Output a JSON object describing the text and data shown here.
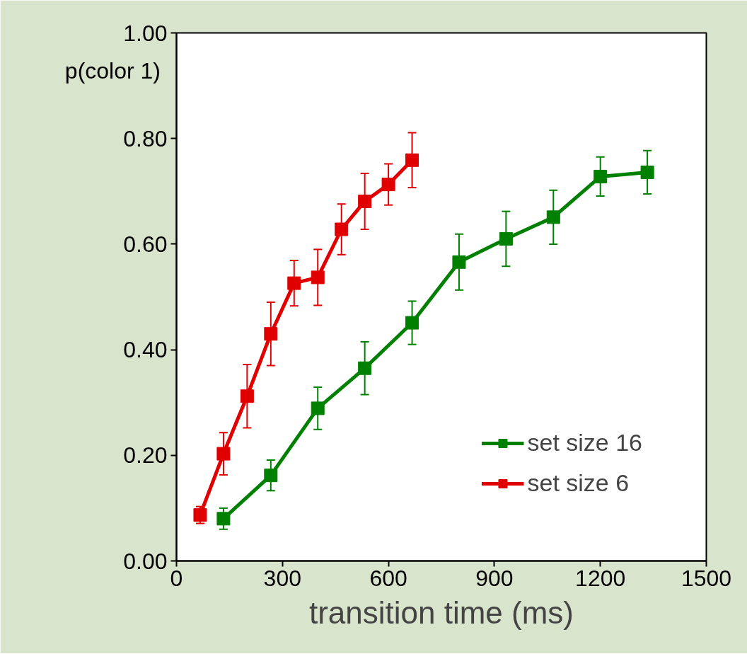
{
  "chart_data": {
    "type": "line",
    "xlabel": "transition time (ms)",
    "ylabel": "p(color 1)",
    "xlim": [
      0,
      1500
    ],
    "xticks": [
      0,
      300,
      600,
      900,
      1200,
      1500
    ],
    "ylim": [
      0,
      1
    ],
    "yticks": [
      {
        "value": 0,
        "label": "0.00"
      },
      {
        "value": 0.2,
        "label": "0.20"
      },
      {
        "value": 0.4,
        "label": "0.40"
      },
      {
        "value": 0.6,
        "label": "0.60"
      },
      {
        "value": 0.8,
        "label": "0.80"
      },
      {
        "value": 1,
        "label": "1.00"
      }
    ],
    "grid": false,
    "legend": "bottom right",
    "marker": "square",
    "line_style": "solid",
    "series": [
      {
        "name": "set size 16",
        "color": "#008000",
        "x": [
          133,
          267,
          400,
          533,
          667,
          800,
          933,
          1067,
          1200,
          1333
        ],
        "values": [
          0.08,
          0.162,
          0.289,
          0.365,
          0.451,
          0.566,
          0.61,
          0.651,
          0.728,
          0.736
        ],
        "errors": [
          0.02,
          0.029,
          0.04,
          0.05,
          0.041,
          0.053,
          0.052,
          0.051,
          0.037,
          0.041
        ]
      },
      {
        "name": "set size 6",
        "color": "#e00000",
        "x": [
          67,
          133,
          200,
          267,
          333,
          400,
          467,
          533,
          600,
          667
        ],
        "values": [
          0.087,
          0.203,
          0.312,
          0.43,
          0.526,
          0.537,
          0.628,
          0.681,
          0.713,
          0.759
        ],
        "errors": [
          0.016,
          0.04,
          0.06,
          0.06,
          0.043,
          0.053,
          0.048,
          0.053,
          0.039,
          0.052
        ]
      }
    ]
  }
}
